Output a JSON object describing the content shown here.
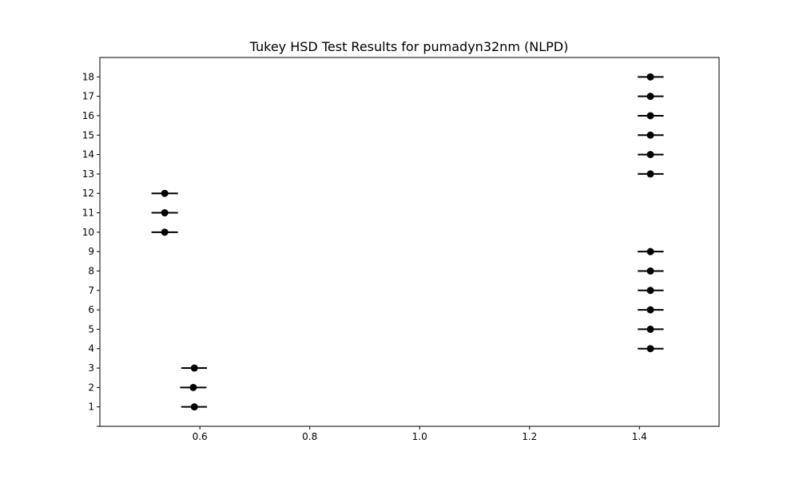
{
  "chart_data": {
    "type": "scatter",
    "title": "Tukey HSD Test Results for pumadyn32nm (NLPD)",
    "xlabel": "",
    "ylabel": "",
    "xlim": [
      0.418,
      1.545
    ],
    "ylim": [
      0,
      19
    ],
    "x_ticks": [
      0.6,
      0.8,
      1.0,
      1.2,
      1.4
    ],
    "x_tick_labels": [
      "0.6",
      "0.8",
      "1.0",
      "1.2",
      "1.4"
    ],
    "y_ticks": [
      0,
      1,
      2,
      3,
      4,
      5,
      6,
      7,
      8,
      9,
      10,
      11,
      12,
      13,
      14,
      15,
      16,
      17,
      18
    ],
    "y_tick_labels": [
      "",
      "1",
      "2",
      "3",
      "4",
      "5",
      "6",
      "7",
      "8",
      "9",
      "10",
      "11",
      "12",
      "13",
      "14",
      "15",
      "16",
      "17",
      "18"
    ],
    "grid": false,
    "marker_color": "#000000",
    "points": [
      {
        "group": 1,
        "mean": 0.59,
        "lower": 0.566,
        "upper": 0.613
      },
      {
        "group": 2,
        "mean": 0.588,
        "lower": 0.564,
        "upper": 0.612
      },
      {
        "group": 3,
        "mean": 0.59,
        "lower": 0.566,
        "upper": 0.613
      },
      {
        "group": 4,
        "mean": 1.42,
        "lower": 1.397,
        "upper": 1.444
      },
      {
        "group": 5,
        "mean": 1.42,
        "lower": 1.397,
        "upper": 1.444
      },
      {
        "group": 6,
        "mean": 1.42,
        "lower": 1.397,
        "upper": 1.444
      },
      {
        "group": 7,
        "mean": 1.42,
        "lower": 1.397,
        "upper": 1.444
      },
      {
        "group": 8,
        "mean": 1.42,
        "lower": 1.397,
        "upper": 1.444
      },
      {
        "group": 9,
        "mean": 1.42,
        "lower": 1.397,
        "upper": 1.444
      },
      {
        "group": 10,
        "mean": 0.536,
        "lower": 0.512,
        "upper": 0.56
      },
      {
        "group": 11,
        "mean": 0.536,
        "lower": 0.512,
        "upper": 0.56
      },
      {
        "group": 12,
        "mean": 0.536,
        "lower": 0.512,
        "upper": 0.56
      },
      {
        "group": 13,
        "mean": 1.42,
        "lower": 1.397,
        "upper": 1.444
      },
      {
        "group": 14,
        "mean": 1.42,
        "lower": 1.397,
        "upper": 1.444
      },
      {
        "group": 15,
        "mean": 1.42,
        "lower": 1.397,
        "upper": 1.444
      },
      {
        "group": 16,
        "mean": 1.42,
        "lower": 1.397,
        "upper": 1.444
      },
      {
        "group": 17,
        "mean": 1.42,
        "lower": 1.397,
        "upper": 1.444
      },
      {
        "group": 18,
        "mean": 1.42,
        "lower": 1.397,
        "upper": 1.444
      }
    ]
  }
}
